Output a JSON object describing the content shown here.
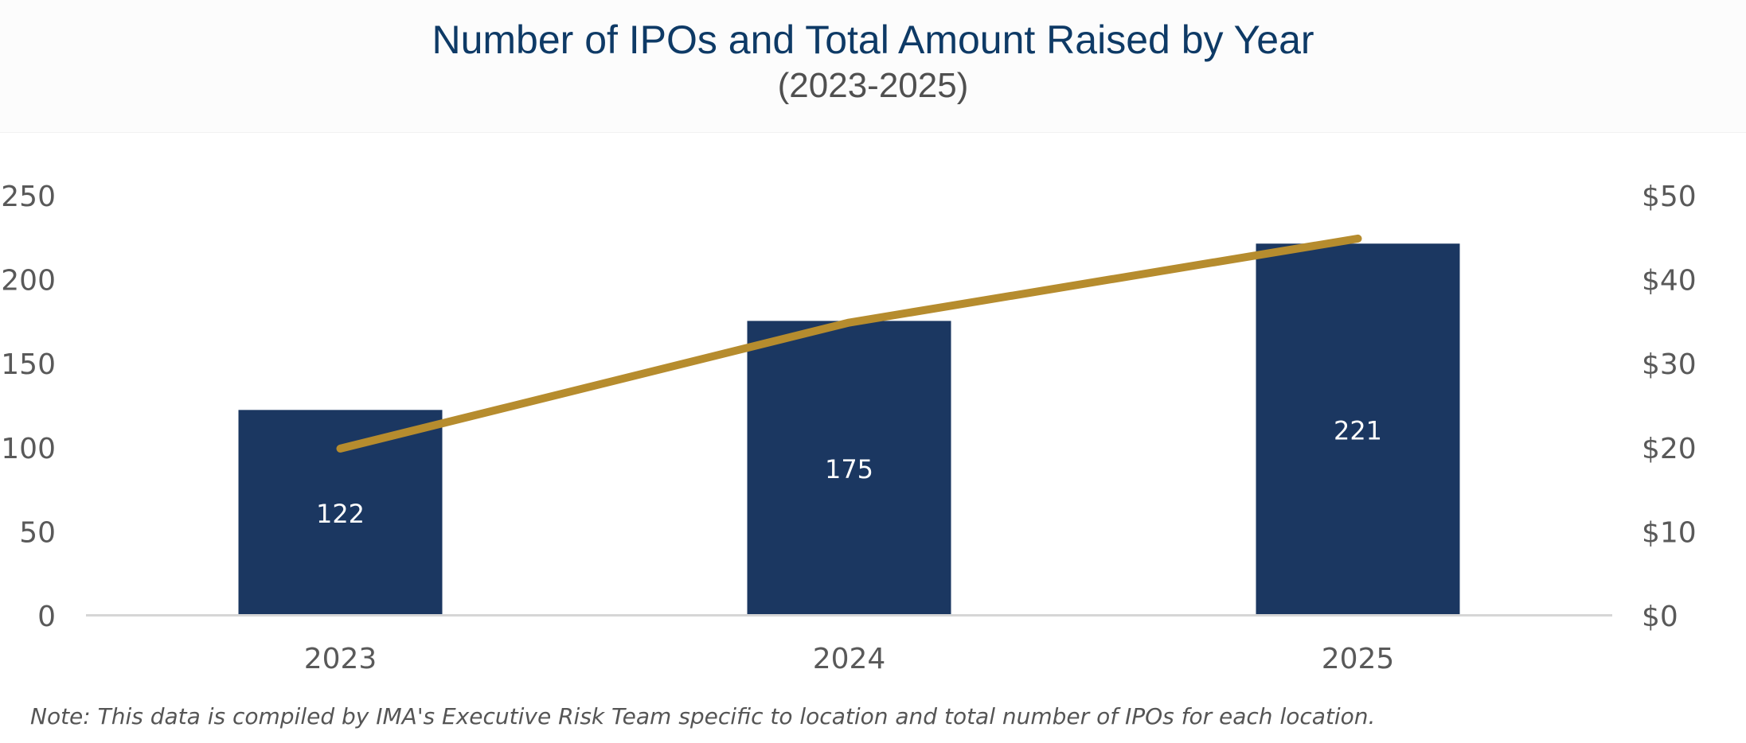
{
  "chart_data": {
    "type": "bar",
    "title": "Number of IPOs and Total Amount Raised by Year",
    "subtitle": "(2023-2025)",
    "categories": [
      "2023",
      "2024",
      "2025"
    ],
    "series": [
      {
        "type": "bar",
        "axis": "left",
        "values": [
          122,
          175,
          221
        ],
        "data_labels": [
          "122",
          "175",
          "221"
        ],
        "color": "#1b3761"
      },
      {
        "type": "line",
        "axis": "right",
        "values": [
          19.8,
          34.8,
          44.8
        ],
        "color": "#b68c2e"
      }
    ],
    "y_left": {
      "ylim": [
        0,
        250
      ],
      "ticks": [
        0,
        50,
        100,
        150,
        200,
        250
      ],
      "tick_labels": [
        "0",
        "50",
        "100",
        "150",
        "200",
        "250"
      ]
    },
    "y_right": {
      "ylim": [
        0,
        50
      ],
      "ticks": [
        0,
        10,
        20,
        30,
        40,
        50
      ],
      "tick_labels": [
        "$0",
        "$10",
        "$20",
        "$30",
        "$40",
        "$50"
      ]
    },
    "grid": false,
    "legend": "none",
    "note": "Note: This data is compiled by IMA's Executive Risk Team specific to location and total number of IPOs for each location."
  }
}
